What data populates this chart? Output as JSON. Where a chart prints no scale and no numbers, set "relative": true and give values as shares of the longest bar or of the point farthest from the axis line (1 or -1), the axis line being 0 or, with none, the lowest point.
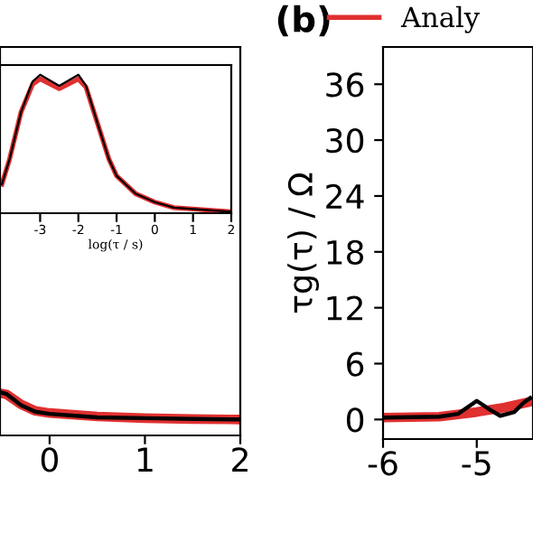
{
  "chart_data": [
    {
      "type": "line",
      "relative": true,
      "xlim": [
        -0.52,
        2
      ],
      "xticks": [
        0,
        1,
        2
      ],
      "tick_labels": "x",
      "legend": false,
      "series": [
        {
          "color": "#e03030",
          "x": [
            -0.52,
            -0.45,
            -0.3,
            -0.15,
            0,
            0.5,
            1,
            1.5,
            2
          ],
          "values": [
            0.98,
            0.95,
            0.72,
            0.57,
            0.52,
            0.44,
            0.4,
            0.38,
            0.37
          ]
        },
        {
          "color": "#000000",
          "x": [
            -0.52,
            -0.45,
            -0.3,
            -0.15,
            0,
            0.5,
            1,
            1.5,
            2
          ],
          "values": [
            1.0,
            0.96,
            0.7,
            0.55,
            0.5,
            0.42,
            0.4,
            0.38,
            0.37
          ]
        }
      ]
    },
    {
      "type": "line",
      "relative": true,
      "xlim": [
        -4.05,
        2
      ],
      "xticks": [
        -3,
        -2,
        -1,
        0,
        1,
        2
      ],
      "tick_labels": "x",
      "xlabel": "log(τ / s)",
      "legend": false,
      "series": [
        {
          "color": "#e03030",
          "x": [
            -4.0,
            -3.8,
            -3.5,
            -3.2,
            -3.0,
            -2.5,
            -2.0,
            -1.8,
            -1.5,
            -1.2,
            -1.0,
            -0.5,
            0,
            0.5,
            1,
            2
          ],
          "values": [
            0.21,
            0.39,
            0.73,
            0.93,
            0.97,
            0.9,
            0.97,
            0.91,
            0.65,
            0.39,
            0.27,
            0.14,
            0.08,
            0.04,
            0.03,
            0.01
          ]
        },
        {
          "color": "#000000",
          "x": [
            -4.0,
            -3.8,
            -3.5,
            -3.2,
            -3.0,
            -2.5,
            -2.0,
            -1.8,
            -1.5,
            -1.2,
            -1.0,
            -0.5,
            0,
            0.5,
            1,
            2
          ],
          "values": [
            0.21,
            0.39,
            0.73,
            0.95,
            1.0,
            0.92,
            1.0,
            0.92,
            0.65,
            0.39,
            0.27,
            0.14,
            0.08,
            0.04,
            0.03,
            0.01
          ]
        }
      ]
    },
    {
      "type": "line",
      "title": "(b)",
      "ylabel": "τg(τ) / Ω",
      "xlim": [
        -6,
        -4.4
      ],
      "xticks": [
        -6,
        -5
      ],
      "ylim": [
        -2.1,
        40
      ],
      "yticks": [
        0,
        6,
        12,
        18,
        24,
        30,
        36
      ],
      "legend": "top",
      "series": [
        {
          "name": "Analy",
          "color": "#e03030",
          "x": [
            -6,
            -5.4,
            -5.0,
            -4.7,
            -4.43
          ],
          "values": [
            0.2,
            0.3,
            0.8,
            1.3,
            1.9
          ]
        },
        {
          "color": "#000000",
          "x": [
            -6,
            -5.4,
            -5.2,
            -5.0,
            -4.85,
            -4.75,
            -4.6,
            -4.5,
            -4.43
          ],
          "values": [
            0.2,
            0.3,
            0.6,
            2.0,
            1.0,
            0.4,
            0.8,
            1.8,
            2.3
          ]
        }
      ]
    }
  ]
}
